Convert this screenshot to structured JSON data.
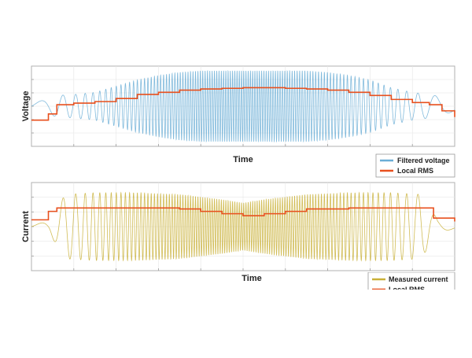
{
  "chart_data": [
    {
      "type": "line",
      "title": "",
      "xlabel": "Time",
      "ylabel": "Voltage",
      "grid": true,
      "legend_placement": "bottom-right",
      "xlim": [
        0,
        1
      ],
      "ylim": [
        -1.3,
        1.3
      ],
      "series": [
        {
          "name": "Filtered voltage",
          "color": "#6baed6",
          "kind": "oscillation",
          "frequency_profile": "chirp, low at ends, high in the middle",
          "envelope": {
            "x": [
              0.0,
              0.03,
              0.06,
              0.1,
              0.15,
              0.2,
              0.25,
              0.3,
              0.35,
              0.4,
              0.45,
              0.5,
              0.55,
              0.6,
              0.65,
              0.7,
              0.75,
              0.8,
              0.85,
              0.9,
              0.94,
              0.97,
              1.0
            ],
            "amplitude": [
              0.1,
              0.2,
              0.35,
              0.38,
              0.45,
              0.65,
              0.85,
              1.0,
              1.1,
              1.15,
              1.15,
              1.15,
              1.15,
              1.15,
              1.15,
              1.1,
              1.0,
              0.85,
              0.6,
              0.45,
              0.38,
              0.3,
              0.15
            ]
          }
        },
        {
          "name": "Local RMS",
          "color": "#e8501e",
          "kind": "step",
          "x": [
            0.0,
            0.04,
            0.06,
            0.1,
            0.15,
            0.2,
            0.25,
            0.3,
            0.35,
            0.4,
            0.45,
            0.5,
            0.55,
            0.6,
            0.65,
            0.7,
            0.75,
            0.8,
            0.85,
            0.9,
            0.94,
            0.97,
            1.0
          ],
          "y": [
            -0.45,
            -0.25,
            0.05,
            0.1,
            0.15,
            0.25,
            0.38,
            0.45,
            0.52,
            0.56,
            0.58,
            0.6,
            0.6,
            0.58,
            0.56,
            0.52,
            0.45,
            0.35,
            0.22,
            0.12,
            0.05,
            -0.15,
            -0.35
          ]
        }
      ]
    },
    {
      "type": "line",
      "title": "",
      "xlabel": "Time",
      "ylabel": "Current",
      "grid": true,
      "legend_placement": "bottom-right",
      "xlim": [
        0,
        1
      ],
      "ylim": [
        -1.3,
        1.3
      ],
      "series": [
        {
          "name": "Measured current",
          "color": "#c9b037",
          "kind": "oscillation",
          "frequency_profile": "chirp, low at ends, high in the middle",
          "envelope": {
            "x": [
              0.0,
              0.04,
              0.08,
              0.15,
              0.25,
              0.35,
              0.45,
              0.5,
              0.55,
              0.65,
              0.75,
              0.85,
              0.92,
              0.96,
              1.0
            ],
            "amplitude": [
              0.05,
              0.15,
              0.95,
              1.0,
              1.0,
              0.95,
              0.8,
              0.7,
              0.8,
              0.95,
              1.0,
              1.0,
              0.95,
              0.2,
              0.05
            ]
          }
        },
        {
          "name": "Local RMS",
          "color": "#e8501e",
          "kind": "step",
          "x": [
            0.0,
            0.04,
            0.06,
            0.08,
            0.15,
            0.25,
            0.35,
            0.4,
            0.45,
            0.5,
            0.55,
            0.6,
            0.65,
            0.75,
            0.85,
            0.92,
            0.95,
            1.0
          ],
          "y": [
            0.2,
            0.45,
            0.55,
            0.55,
            0.55,
            0.55,
            0.52,
            0.45,
            0.38,
            0.32,
            0.38,
            0.45,
            0.52,
            0.55,
            0.55,
            0.55,
            0.25,
            0.15
          ]
        }
      ]
    }
  ],
  "top_legend": {
    "items": [
      "Filtered voltage",
      "Local RMS"
    ]
  },
  "bottom_legend": {
    "items": [
      "Measured current",
      "Local RMS"
    ]
  }
}
